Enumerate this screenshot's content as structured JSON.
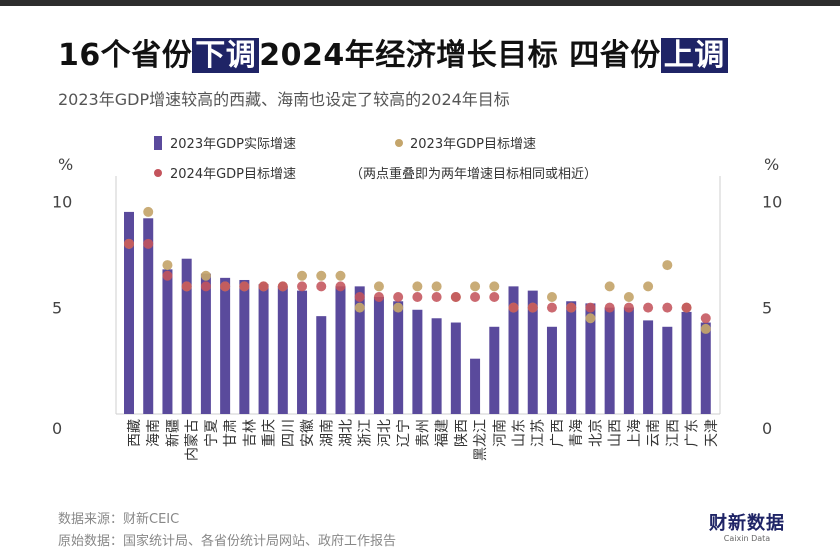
{
  "header": {
    "title_parts": [
      "16个省份",
      "下调",
      "2024年经济增长目标 四省份",
      "上调"
    ],
    "subtitle": "2023年GDP增速较高的西藏、海南也设定了较高的2024年目标"
  },
  "colors": {
    "bar": "#5a4a9c",
    "target_2023": "#c4a56b",
    "target_2024": "#c4545c",
    "highlight": "#1f2466"
  },
  "chart_data": {
    "type": "bar",
    "unit_label": "%",
    "ylim": [
      0,
      11
    ],
    "yticks": [
      0,
      5,
      10
    ],
    "legend": {
      "actual": "2023年GDP实际增速",
      "target_2023": "2023年GDP目标增速",
      "target_2024": "2024年GDP目标增速",
      "note": "（两点重叠即为两年增速目标相同或相近）"
    },
    "categories": [
      "西藏",
      "海南",
      "新疆",
      "内蒙古",
      "宁夏",
      "甘肃",
      "吉林",
      "重庆",
      "四川",
      "安徽",
      "湖南",
      "湖北",
      "浙江",
      "河北",
      "辽宁",
      "贵州",
      "福建",
      "陕西",
      "黑龙江",
      "河南",
      "山东",
      "江苏",
      "广西",
      "青海",
      "北京",
      "山西",
      "上海",
      "云南",
      "江西",
      "广东",
      "天津"
    ],
    "series": [
      {
        "name": "2023年GDP实际增速",
        "kind": "bar",
        "values": [
          9.5,
          9.2,
          6.8,
          7.3,
          6.6,
          6.4,
          6.3,
          6.1,
          6.0,
          5.8,
          4.6,
          6.0,
          6.0,
          5.5,
          5.3,
          4.9,
          4.5,
          4.3,
          2.6,
          4.1,
          6.0,
          5.8,
          4.1,
          5.3,
          5.2,
          5.0,
          5.0,
          4.4,
          4.1,
          4.8,
          4.3
        ]
      },
      {
        "name": "2023年GDP目标增速",
        "kind": "dot",
        "values": [
          8.0,
          9.5,
          7.0,
          6.0,
          6.5,
          6.0,
          6.0,
          6.0,
          6.0,
          6.5,
          6.5,
          6.5,
          5.0,
          6.0,
          5.0,
          6.0,
          6.0,
          5.5,
          6.0,
          6.0,
          5.0,
          5.0,
          5.5,
          5.0,
          4.5,
          6.0,
          5.5,
          6.0,
          7.0,
          5.0,
          4.0
        ]
      },
      {
        "name": "2024年GDP目标增速",
        "kind": "dot",
        "values": [
          8.0,
          8.0,
          6.5,
          6.0,
          6.0,
          6.0,
          6.0,
          6.0,
          6.0,
          6.0,
          6.0,
          6.0,
          5.5,
          5.5,
          5.5,
          5.5,
          5.5,
          5.5,
          5.5,
          5.5,
          5.0,
          5.0,
          5.0,
          5.0,
          5.0,
          5.0,
          5.0,
          5.0,
          5.0,
          5.0,
          4.5
        ]
      }
    ]
  },
  "footer": {
    "source": "数据来源：财新CEIC",
    "origin": "原始数据：国家统计局、各省份统计局网站、政府工作报告",
    "logo_cn": "财新数据",
    "logo_en": "Caixin Data"
  }
}
